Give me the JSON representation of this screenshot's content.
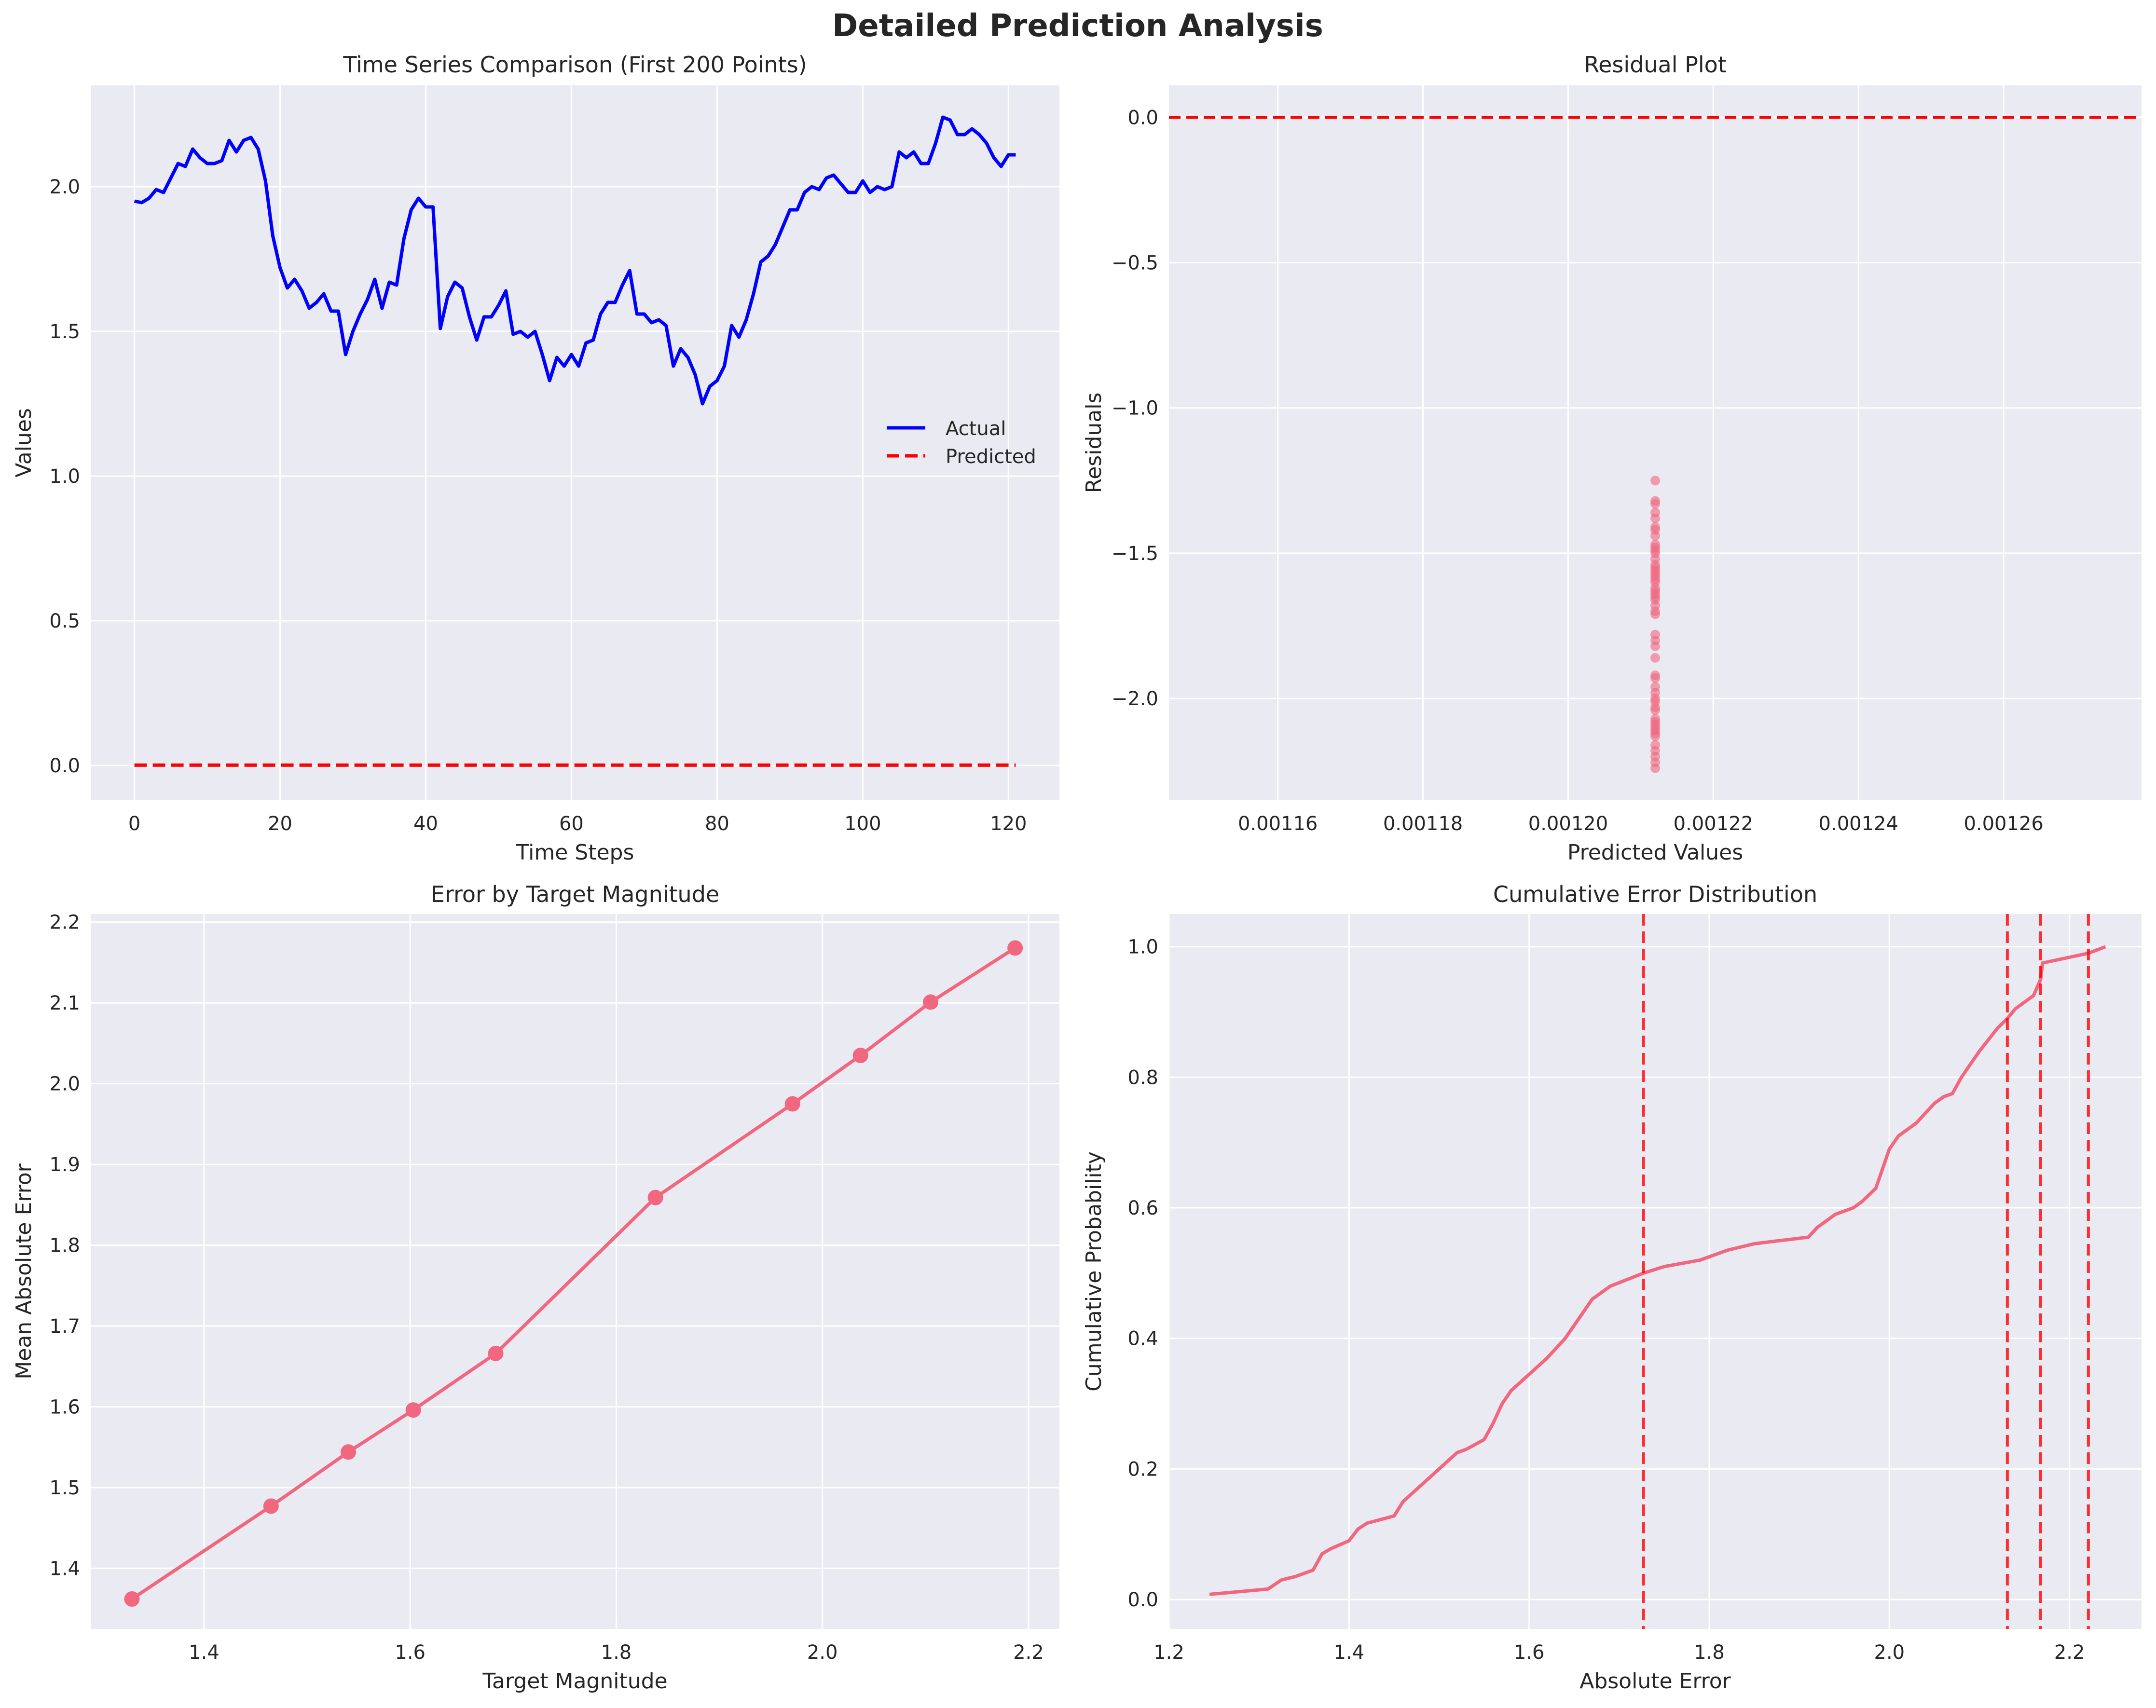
{
  "figure": {
    "suptitle": "Detailed Prediction Analysis"
  },
  "colors": {
    "actual": "#0000ff",
    "predicted": "#ff0000",
    "pink": "#f0677f",
    "panel_bg": "#eaeaf2",
    "grid": "#ffffff",
    "text": "#262626"
  },
  "chart_data": [
    {
      "type": "line",
      "title": "Time Series Comparison (First 200 Points)",
      "xlabel": "Time Steps",
      "ylabel": "Values",
      "xlim": [
        -6,
        127
      ],
      "ylim": [
        -0.12,
        2.35
      ],
      "xticks": [
        0,
        20,
        40,
        60,
        80,
        100,
        120
      ],
      "yticks": [
        0.0,
        0.5,
        1.0,
        1.5,
        2.0
      ],
      "legend": "center-right",
      "grid": true,
      "series": [
        {
          "name": "Actual",
          "style": "solid",
          "values": [
            1.95,
            1.945,
            1.96,
            1.99,
            1.98,
            2.03,
            2.08,
            2.07,
            2.13,
            2.1,
            2.08,
            2.08,
            2.09,
            2.16,
            2.12,
            2.16,
            2.17,
            2.13,
            2.02,
            1.83,
            1.72,
            1.65,
            1.68,
            1.64,
            1.58,
            1.6,
            1.63,
            1.57,
            1.57,
            1.42,
            1.5,
            1.56,
            1.61,
            1.68,
            1.58,
            1.67,
            1.66,
            1.82,
            1.92,
            1.96,
            1.93,
            1.93,
            1.51,
            1.62,
            1.67,
            1.65,
            1.55,
            1.47,
            1.55,
            1.55,
            1.59,
            1.64,
            1.49,
            1.5,
            1.48,
            1.5,
            1.42,
            1.33,
            1.41,
            1.38,
            1.42,
            1.38,
            1.46,
            1.47,
            1.56,
            1.6,
            1.6,
            1.66,
            1.71,
            1.56,
            1.56,
            1.53,
            1.54,
            1.52,
            1.38,
            1.44,
            1.41,
            1.35,
            1.25,
            1.31,
            1.33,
            1.38,
            1.52,
            1.48,
            1.54,
            1.63,
            1.74,
            1.76,
            1.8,
            1.86,
            1.92,
            1.92,
            1.98,
            2.0,
            1.99,
            2.03,
            2.04,
            2.01,
            1.98,
            1.98,
            2.02,
            1.98,
            2.0,
            1.99,
            2.0,
            2.12,
            2.1,
            2.12,
            2.08,
            2.08,
            2.15,
            2.24,
            2.23,
            2.18,
            2.18,
            2.2,
            2.18,
            2.15,
            2.1,
            2.07,
            2.11,
            2.11
          ]
        },
        {
          "name": "Predicted",
          "style": "dashed",
          "x": [
            0,
            121
          ],
          "values": [
            0.0012,
            0.0012
          ]
        }
      ]
    },
    {
      "type": "scatter",
      "title": "Residual Plot",
      "xlabel": "Predicted Values",
      "ylabel": "Residuals",
      "xlim": [
        0.001145,
        0.001279
      ],
      "ylim": [
        -2.35,
        0.11
      ],
      "xticks": [
        0.00116,
        0.00118,
        0.0012,
        0.00122,
        0.00124,
        0.00126
      ],
      "xtick_labels": [
        "0.00116",
        "0.00118",
        "0.00120",
        "0.00122",
        "0.00124",
        "0.00126"
      ],
      "yticks": [
        -2.0,
        -1.5,
        -1.0,
        -0.5,
        0.0
      ],
      "ytick_labels": [
        "−2.0",
        "−1.5",
        "−1.0",
        "−0.5",
        "0.0"
      ],
      "grid": true,
      "reference_line_y": 0.0,
      "x_value": 0.001212,
      "residuals": [
        -1.25,
        -1.32,
        -1.33,
        -1.36,
        -1.38,
        -1.41,
        -1.42,
        -1.44,
        -1.47,
        -1.48,
        -1.49,
        -1.5,
        -1.52,
        -1.54,
        -1.55,
        -1.56,
        -1.57,
        -1.58,
        -1.59,
        -1.6,
        -1.62,
        -1.63,
        -1.64,
        -1.65,
        -1.66,
        -1.68,
        -1.7,
        -1.71,
        -1.78,
        -1.8,
        -1.82,
        -1.86,
        -1.92,
        -1.93,
        -1.96,
        -1.98,
        -2.0,
        -2.01,
        -2.03,
        -2.04,
        -2.07,
        -2.08,
        -2.09,
        -2.1,
        -2.11,
        -2.12,
        -2.13,
        -2.16,
        -2.18,
        -2.2,
        -2.22,
        -2.24
      ]
    },
    {
      "type": "line",
      "title": "Error by Target Magnitude",
      "xlabel": "Target Magnitude",
      "ylabel": "Mean Absolute Error",
      "xlim": [
        1.29,
        2.23
      ],
      "ylim": [
        1.325,
        2.21
      ],
      "xticks": [
        1.4,
        1.6,
        1.8,
        2.0,
        2.2
      ],
      "yticks": [
        1.4,
        1.5,
        1.6,
        1.7,
        1.8,
        1.9,
        2.0,
        2.1,
        2.2
      ],
      "grid": true,
      "markers": true,
      "x": [
        1.33,
        1.465,
        1.54,
        1.603,
        1.683,
        1.838,
        1.971,
        2.037,
        2.105,
        2.187
      ],
      "values": [
        1.362,
        1.477,
        1.544,
        1.596,
        1.666,
        1.859,
        1.975,
        2.035,
        2.101,
        2.168
      ]
    },
    {
      "type": "line",
      "title": "Cumulative Error Distribution",
      "xlabel": "Absolute Error",
      "ylabel": "Cumulative Probability",
      "xlim": [
        1.2,
        2.28
      ],
      "ylim": [
        -0.045,
        1.05
      ],
      "xticks": [
        1.2,
        1.4,
        1.6,
        1.8,
        2.0,
        2.2
      ],
      "yticks": [
        0.0,
        0.2,
        0.4,
        0.6,
        0.8,
        1.0
      ],
      "grid": true,
      "vertical_lines": [
        1.727,
        2.131,
        2.168,
        2.221
      ],
      "x": [
        1.245,
        1.31,
        1.325,
        1.34,
        1.36,
        1.37,
        1.38,
        1.4,
        1.41,
        1.42,
        1.45,
        1.46,
        1.48,
        1.5,
        1.52,
        1.53,
        1.55,
        1.56,
        1.57,
        1.58,
        1.6,
        1.62,
        1.63,
        1.64,
        1.66,
        1.67,
        1.69,
        1.727,
        1.75,
        1.79,
        1.81,
        1.82,
        1.85,
        1.88,
        1.91,
        1.92,
        1.94,
        1.96,
        1.97,
        1.985,
        2.0,
        2.01,
        2.02,
        2.03,
        2.05,
        2.06,
        2.07,
        2.08,
        2.09,
        2.1,
        2.12,
        2.131,
        2.14,
        2.15,
        2.16,
        2.168,
        2.17,
        2.221,
        2.24
      ],
      "values": [
        0.008,
        0.016,
        0.03,
        0.035,
        0.045,
        0.07,
        0.078,
        0.09,
        0.108,
        0.117,
        0.128,
        0.15,
        0.175,
        0.2,
        0.225,
        0.23,
        0.245,
        0.27,
        0.3,
        0.32,
        0.345,
        0.37,
        0.385,
        0.4,
        0.44,
        0.46,
        0.48,
        0.5,
        0.51,
        0.52,
        0.53,
        0.535,
        0.545,
        0.55,
        0.555,
        0.57,
        0.59,
        0.6,
        0.61,
        0.63,
        0.69,
        0.71,
        0.72,
        0.73,
        0.76,
        0.77,
        0.775,
        0.8,
        0.82,
        0.84,
        0.875,
        0.89,
        0.905,
        0.915,
        0.925,
        0.95,
        0.975,
        0.99,
        1.0
      ]
    }
  ]
}
